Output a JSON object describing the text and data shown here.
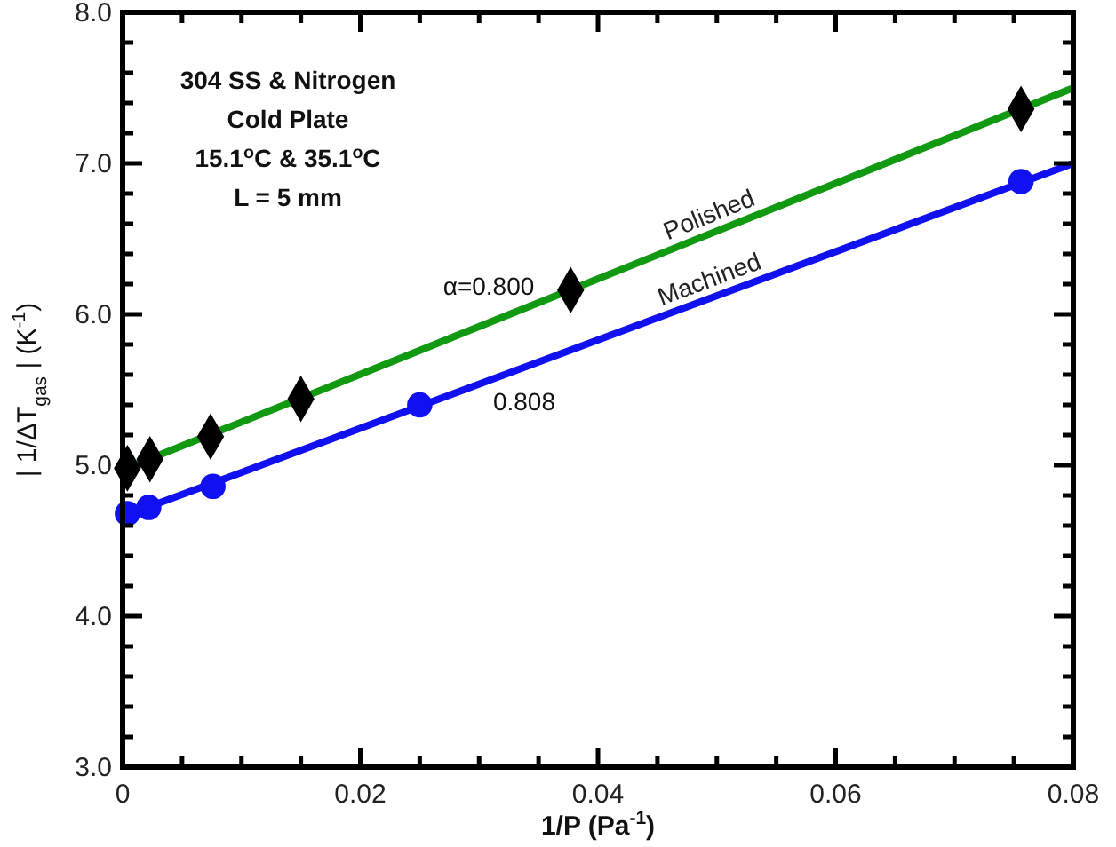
{
  "chart_data": {
    "type": "scatter",
    "xlabel": "1/P (Pa$^{-1}$)",
    "ylabel": "| 1/ΔT$_{gas}$ | (K$^{-1}$)",
    "xlim": [
      0,
      0.08
    ],
    "ylim": [
      3,
      8
    ],
    "xticks": [
      0,
      {
        "value": 0.005,
        "label": null
      },
      {
        "value": 0.01,
        "label": null
      },
      {
        "value": 0.015,
        "label": null
      },
      0.02,
      {
        "value": 0.025,
        "label": null
      },
      {
        "value": 0.03,
        "label": null
      },
      {
        "value": 0.035,
        "label": null
      },
      0.04,
      {
        "value": 0.045,
        "label": null
      },
      {
        "value": 0.05,
        "label": null
      },
      {
        "value": 0.055,
        "label": null
      },
      0.06,
      {
        "value": 0.065,
        "label": null
      },
      {
        "value": 0.07,
        "label": null
      },
      {
        "value": 0.075,
        "label": null
      },
      0.08
    ],
    "yticks": [
      {
        "value": 3,
        "label": "3.0"
      },
      {
        "value": 3.2,
        "label": null
      },
      {
        "value": 3.4,
        "label": null
      },
      {
        "value": 3.6,
        "label": null
      },
      {
        "value": 3.8,
        "label": null
      },
      {
        "value": 4,
        "label": "4.0"
      },
      {
        "value": 4.2,
        "label": null
      },
      {
        "value": 4.4,
        "label": null
      },
      {
        "value": 4.6,
        "label": null
      },
      {
        "value": 4.8,
        "label": null
      },
      {
        "value": 5,
        "label": "5.0"
      },
      {
        "value": 5.2,
        "label": null
      },
      {
        "value": 5.4,
        "label": null
      },
      {
        "value": 5.6,
        "label": null
      },
      {
        "value": 5.8,
        "label": null
      },
      {
        "value": 6,
        "label": "6.0"
      },
      {
        "value": 6.2,
        "label": null
      },
      {
        "value": 6.4,
        "label": null
      },
      {
        "value": 6.6,
        "label": null
      },
      {
        "value": 6.8,
        "label": null
      },
      {
        "value": 7,
        "label": "7.0"
      },
      {
        "value": 7.2,
        "label": null
      },
      {
        "value": 7.4,
        "label": null
      },
      {
        "value": 7.6,
        "label": null
      },
      {
        "value": 7.8,
        "label": null
      },
      {
        "value": 8,
        "label": "8.0"
      }
    ],
    "grid": false,
    "series": [
      {
        "type": "line",
        "name": "Polished",
        "color": "#119911",
        "x": [
          0,
          0.08
        ],
        "values": [
          4.97,
          7.5
        ]
      },
      {
        "type": "line",
        "name": "Machined",
        "color": "#1010f0",
        "x": [
          0,
          0.08
        ],
        "values": [
          4.66,
          7.0
        ]
      },
      {
        "color": "#000000",
        "marker": "diamond",
        "x": [
          0.0004,
          0.0023,
          0.0074,
          0.015,
          0.0377,
          0.0756
        ],
        "values": [
          4.98,
          5.04,
          5.19,
          5.44,
          6.16,
          7.36
        ]
      },
      {
        "color": "#1010f0",
        "marker": "circle",
        "x": [
          0.0004,
          0.0022,
          0.0076,
          0.025,
          0.0756
        ],
        "values": [
          4.68,
          4.72,
          4.86,
          5.4,
          6.88
        ]
      }
    ],
    "annotations": [
      "304 SS & Nitrogen",
      "Cold Plate",
      "15.1$^{o}$C & 35.1$^{o}$C",
      "L = 5 mm",
      "α=0.800",
      "0.808"
    ]
  }
}
